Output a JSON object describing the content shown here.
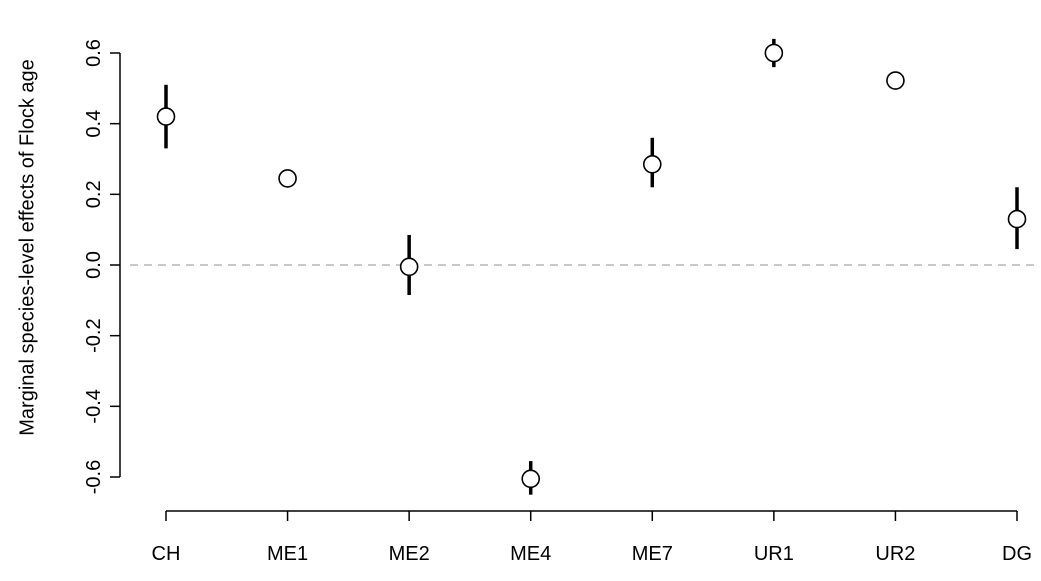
{
  "chart_data": {
    "type": "scatter",
    "title": "",
    "xlabel": "",
    "ylabel": "Marginal species-level effects of Flock age",
    "ylim": [
      -0.62,
      0.62
    ],
    "yticks": [
      "-0.6",
      "-0.4",
      "-0.2",
      "0.0",
      "0.2",
      "0.4",
      "0.6"
    ],
    "ytick_values": [
      -0.6,
      -0.4,
      -0.2,
      0.0,
      0.2,
      0.4,
      0.6
    ],
    "categories": [
      "CH",
      "ME1",
      "ME2",
      "ME4",
      "ME7",
      "UR1",
      "UR2",
      "DG"
    ],
    "values": [
      0.42,
      0.245,
      -0.005,
      -0.605,
      0.285,
      0.6,
      0.522,
      0.13
    ],
    "error_low": [
      0.33,
      0.245,
      -0.085,
      -0.65,
      0.22,
      0.56,
      0.522,
      0.045
    ],
    "error_high": [
      0.51,
      0.245,
      0.085,
      -0.555,
      0.36,
      0.64,
      0.522,
      0.22
    ],
    "reference_line": 0.0,
    "grid": false,
    "colors": {
      "point_fill": "#ffffff",
      "point_stroke": "#000000",
      "reference_line": "#b5b5b5"
    }
  }
}
